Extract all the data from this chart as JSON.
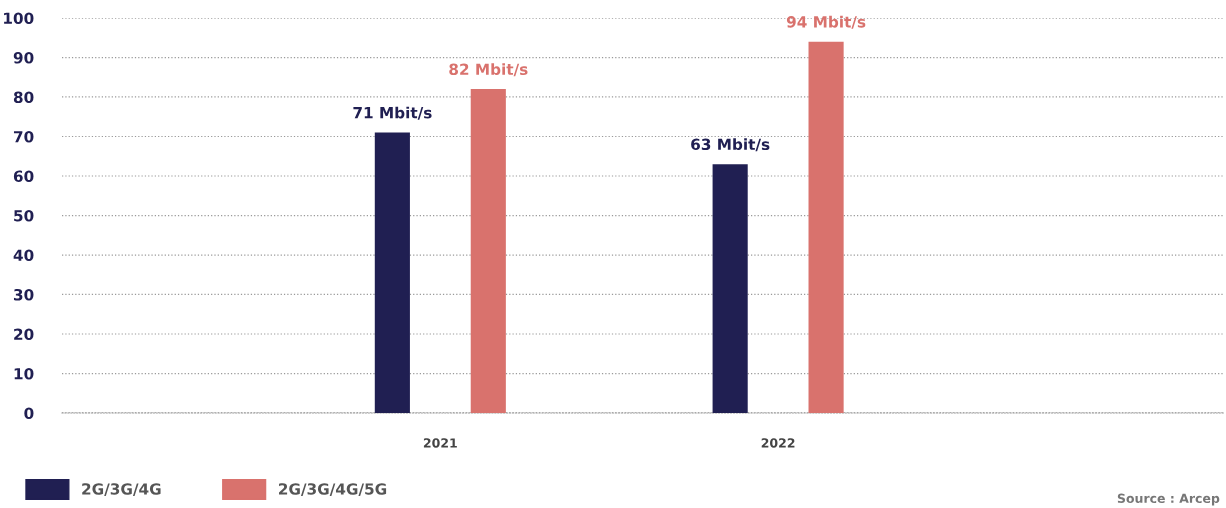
{
  "chart_data": {
    "type": "bar",
    "categories": [
      "2021",
      "2022"
    ],
    "series": [
      {
        "name": "2G/3G/4G",
        "color": "#201f52",
        "values": [
          71,
          63
        ],
        "value_labels": [
          "71 Mbit/s",
          "63 Mbit/s"
        ]
      },
      {
        "name": "2G/3G/4G/5G",
        "color": "#d9726d",
        "values": [
          82,
          94
        ],
        "value_labels": [
          "82 Mbit/s",
          "94 Mbit/s"
        ]
      }
    ],
    "ylim": [
      0,
      100
    ],
    "yticks": [
      0,
      10,
      20,
      30,
      40,
      50,
      60,
      70,
      80,
      90,
      100
    ],
    "grid": "y",
    "legend": "bottom left",
    "annotations": [
      "Source : Arcep"
    ]
  }
}
